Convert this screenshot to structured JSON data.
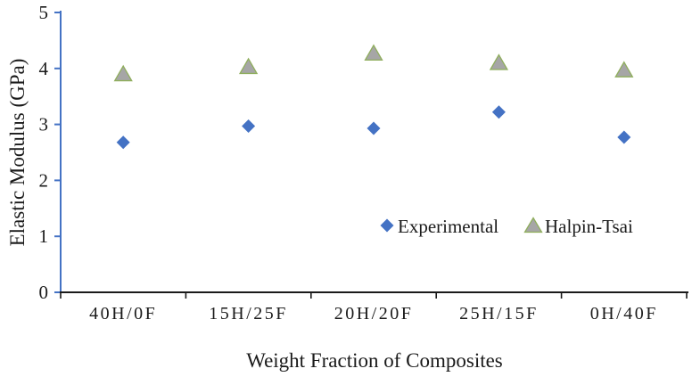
{
  "chart_data": {
    "type": "scatter",
    "xlabel": "Weight Fraction of Composites",
    "ylabel": "Elastic Modulus (GPa)",
    "categories": [
      "40H/0F",
      "15H/25F",
      "20H/20F",
      "25H/15F",
      "0H/40F"
    ],
    "series": [
      {
        "name": "Experimental",
        "marker": "diamond",
        "color": "#4472C4",
        "stroke": "#2F5597",
        "values": [
          2.68,
          2.97,
          2.93,
          3.22,
          2.77
        ]
      },
      {
        "name": "Halpin-Tsai",
        "marker": "triangle",
        "color": "#A6A6A6",
        "stroke": "#8FAE5C",
        "values": [
          3.9,
          4.03,
          4.27,
          4.1,
          3.97
        ]
      }
    ],
    "ylim": [
      0,
      5
    ],
    "yticks": [
      0,
      1,
      2,
      3,
      4,
      5
    ],
    "grid": false,
    "legend_position": "inside-lower-right",
    "axis_colors": {
      "y_axis": "#4472C4",
      "x_axis": "#1a1a1a",
      "text": "#1a1a1a"
    }
  }
}
